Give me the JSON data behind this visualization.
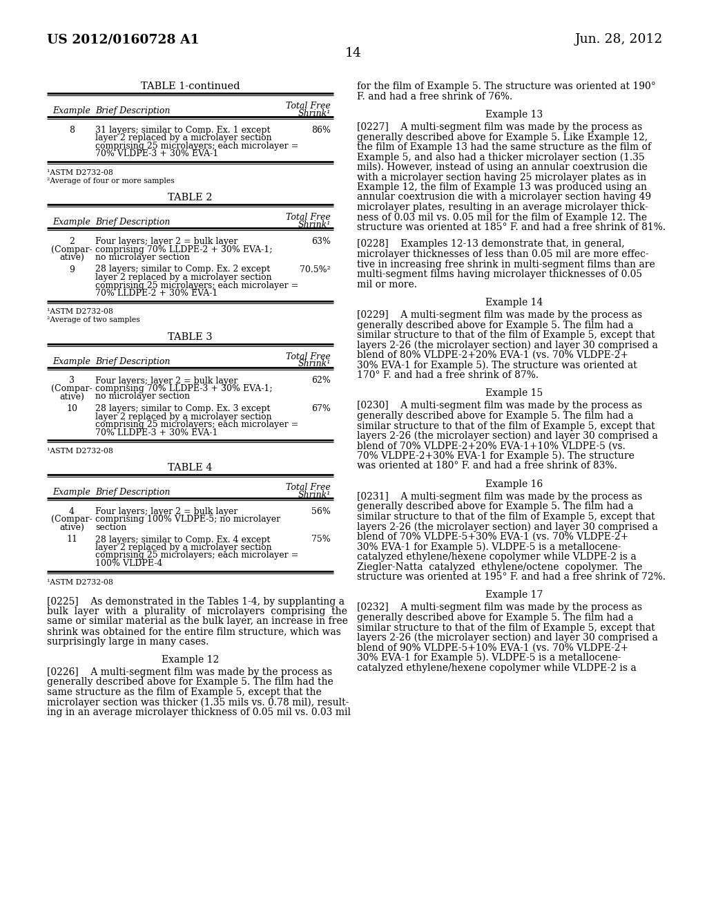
{
  "bg_color": "#ffffff",
  "header_left": "US 2012/0160728 A1",
  "header_right": "Jun. 28, 2012",
  "page_number": "14",
  "table1_continued": {
    "title": "TABLE 1-continued",
    "col_headers": [
      "Example",
      "Brief Description",
      "Total Free\nShrink¹"
    ],
    "rows": [
      {
        "example": "8",
        "ex_lines": [
          "8"
        ],
        "description": "31 layers; similar to Comp. Ex. 1 except\nlayer 2 replaced by a microlayer section\ncomprising 25 microlayers; each microlayer =\n70% VLDPE-3 + 30% EVA-1",
        "shrink": "86%"
      }
    ],
    "footnotes": [
      "¹ASTM D2732-08",
      "²Average of four or more samples"
    ]
  },
  "table2": {
    "title": "TABLE 2",
    "col_headers": [
      "Example",
      "Brief Description",
      "Total Free\nShrink¹"
    ],
    "rows": [
      {
        "example": "2\n(Compar-\native)",
        "ex_lines": [
          "2",
          "(Compar-",
          "ative)"
        ],
        "description": "Four layers; layer 2 = bulk layer\ncomprising 70% LLDPE-2 + 30% EVA-1;\nno microlayer section",
        "shrink": "63%"
      },
      {
        "example": "9",
        "ex_lines": [
          "9"
        ],
        "description": "28 layers; similar to Comp. Ex. 2 except\nlayer 2 replaced by a microlayer section\ncomprising 25 microlayers; each microlayer =\n70% LLDPE-2 + 30% EVA-1",
        "shrink": "70.5%²"
      }
    ],
    "footnotes": [
      "¹ASTM D2732-08",
      "²Average of two samples"
    ]
  },
  "table3": {
    "title": "TABLE 3",
    "col_headers": [
      "Example",
      "Brief Description",
      "Total Free\nShrink¹"
    ],
    "rows": [
      {
        "example": "3\n(Compar-\native)",
        "ex_lines": [
          "3",
          "(Compar-",
          "ative)"
        ],
        "description": "Four layers; layer 2 = bulk layer\ncomprising 70% LLDPE-3 + 30% EVA-1;\nno microlayer section",
        "shrink": "62%"
      },
      {
        "example": "10",
        "ex_lines": [
          "10"
        ],
        "description": "28 layers; similar to Comp. Ex. 3 except\nlayer 2 replaced by a microlayer section\ncomprising 25 microlayers; each microlayer =\n70% LLDPE-3 + 30% EVA-1",
        "shrink": "67%"
      }
    ],
    "footnotes": [
      "¹ASTM D2732-08"
    ]
  },
  "table4": {
    "title": "TABLE 4",
    "col_headers": [
      "Example",
      "Brief Description",
      "Total Free\nShrink¹"
    ],
    "rows": [
      {
        "example": "4\n(Compar-\native)",
        "ex_lines": [
          "4",
          "(Compar-",
          "ative)"
        ],
        "description": "Four layers; layer 2 = bulk layer\ncomprising 100% VLDPE-5; no microlayer\nsection",
        "shrink": "56%"
      },
      {
        "example": "11",
        "ex_lines": [
          "11"
        ],
        "description": "28 layers; similar to Comp. Ex. 4 except\nlayer 2 replaced by a microlayer section\ncomprising 25 microlayers; each microlayer =\n100% VLDPE-4",
        "shrink": "75%"
      }
    ],
    "footnotes": [
      "¹ASTM D2732-08"
    ]
  },
  "para_0225_lines": [
    "[0225]    As demonstrated in the Tables 1-4, by supplanting a",
    "bulk  layer  with  a  plurality  of  microlayers  comprising  the",
    "same or similar material as the bulk layer, an increase in free",
    "shrink was obtained for the entire film structure, which was",
    "surprisingly large in many cases."
  ],
  "example12_title": "Example 12",
  "para_0226_lines": [
    "[0226]    A multi-segment film was made by the process as",
    "generally described above for Example 5. The film had the",
    "same structure as the film of Example 5, except that the",
    "microlayer section was thicker (1.35 mils vs. 0.78 mil), result-",
    "ing in an average microlayer thickness of 0.05 mil vs. 0.03 mil"
  ],
  "right_col_top_lines": [
    "for the film of Example 5. The structure was oriented at 190°",
    "F. and had a free shrink of 76%."
  ],
  "example13_title": "Example 13",
  "para_0227_lines": [
    "[0227]    A multi-segment film was made by the process as",
    "generally described above for Example 5. Like Example 12,",
    "the film of Example 13 had the same structure as the film of",
    "Example 5, and also had a thicker microlayer section (1.35",
    "mils). However, instead of using an annular coextrusion die",
    "with a microlayer section having 25 microlayer plates as in",
    "Example 12, the film of Example 13 was produced using an",
    "annular coextrusion die with a microlayer section having 49",
    "microlayer plates, resulting in an average microlayer thick-",
    "ness of 0.03 mil vs. 0.05 mil for the film of Example 12. The",
    "structure was oriented at 185° F. and had a free shrink of 81%."
  ],
  "para_0228_lines": [
    "[0228]    Examples 12-13 demonstrate that, in general,",
    "microlayer thicknesses of less than 0.05 mil are more effec-",
    "tive in increasing free shrink in multi-segment films than are",
    "multi-segment films having microlayer thicknesses of 0.05",
    "mil or more."
  ],
  "example14_title": "Example 14",
  "para_0229_lines": [
    "[0229]    A multi-segment film was made by the process as",
    "generally described above for Example 5. The film had a",
    "similar structure to that of the film of Example 5, except that",
    "layers 2-26 (the microlayer section) and layer 30 comprised a",
    "blend of 80% VLDPE-2+20% EVA-1 (vs. 70% VLDPE-2+",
    "30% EVA-1 for Example 5). The structure was oriented at",
    "170° F. and had a free shrink of 87%."
  ],
  "example15_title": "Example 15",
  "para_0230_lines": [
    "[0230]    A multi-segment film was made by the process as",
    "generally described above for Example 5. The film had a",
    "similar structure to that of the film of Example 5, except that",
    "layers 2-26 (the microlayer section) and layer 30 comprised a",
    "blend of 70% VLDPE-2+20% EVA-1+10% VLDPE-5 (vs.",
    "70% VLDPE-2+30% EVA-1 for Example 5). The structure",
    "was oriented at 180° F. and had a free shrink of 83%."
  ],
  "example16_title": "Example 16",
  "para_0231_lines": [
    "[0231]    A multi-segment film was made by the process as",
    "generally described above for Example 5. The film had a",
    "similar structure to that of the film of Example 5, except that",
    "layers 2-26 (the microlayer section) and layer 30 comprised a",
    "blend of 70% VLDPE-5+30% EVA-1 (vs. 70% VLDPE-2+",
    "30% EVA-1 for Example 5). VLDPE-5 is a metallocene-",
    "catalyzed ethylene/hexene copolymer while VLDPE-2 is a",
    "Ziegler-Natta  catalyzed  ethylene/octene  copolymer.  The",
    "structure was oriented at 195° F. and had a free shrink of 72%."
  ],
  "example17_title": "Example 17",
  "para_0232_lines": [
    "[0232]    A multi-segment film was made by the process as",
    "generally described above for Example 5. The film had a",
    "similar structure to that of the film of Example 5, except that",
    "layers 2-26 (the microlayer section) and layer 30 comprised a",
    "blend of 90% VLDPE-5+10% EVA-1 (vs. 70% VLDPE-2+",
    "30% EVA-1 for Example 5). VLDPE-5 is a metallocene-",
    "catalyzed ethylene/hexene copolymer while VLDPE-2 is a"
  ]
}
